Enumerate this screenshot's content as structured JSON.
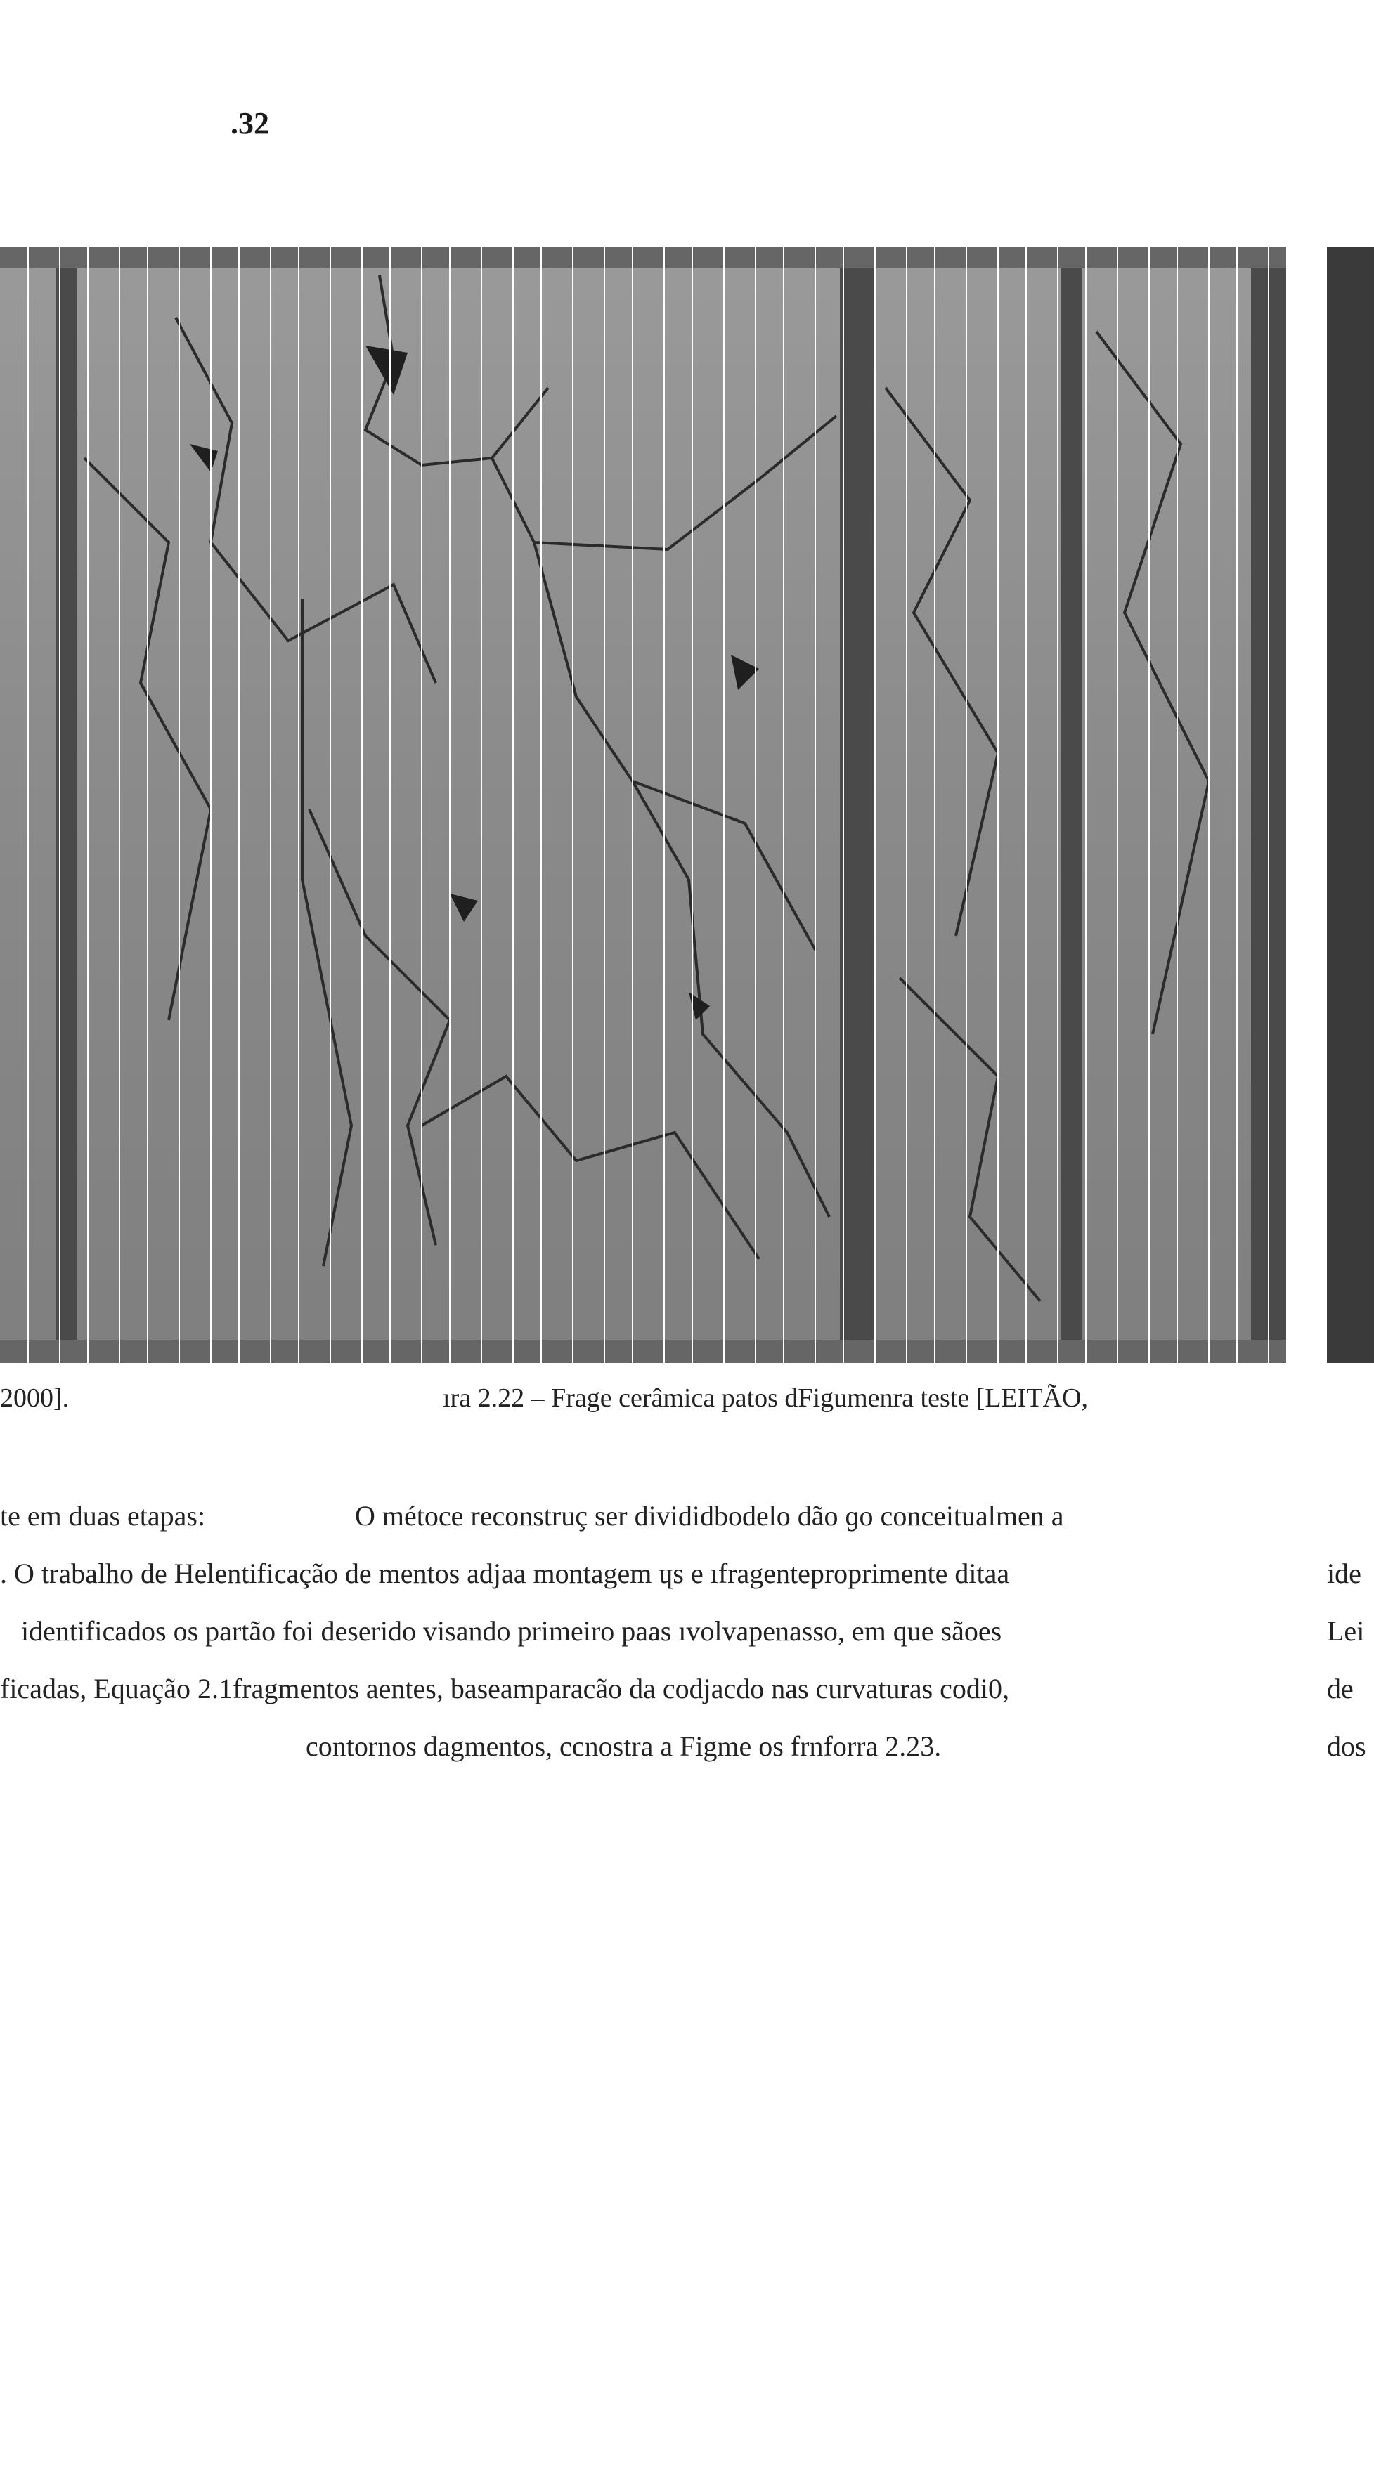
{
  "page": {
    "number": ".32"
  },
  "figure": {
    "caption_left": "2000].",
    "caption_right": "ıra 2.22 – Frage cerâmica patos dFigumenra teste [LEITÃO,",
    "colors": {
      "background": "#8c8c8c",
      "frame": "#555555",
      "crack": "#2b2b2b",
      "grid_line": "#ffffff"
    }
  },
  "body_text": {
    "lines": [
      {
        "fragments": [
          "te em duas etapas:",
          "O métoce reconstruç ser divididbodelo dão ɡo conceitualmen a"
        ]
      },
      {
        "fragments": [
          ". O trabalho de Helentificação de mentos adjaa montagem ɥs e ıfragenteproprimente ditaa",
          "ide"
        ]
      },
      {
        "fragments": [
          "identificados os partão foi deserido visando primeiro paas ıvolvapenasso, em que sãoes",
          "Lei"
        ]
      },
      {
        "fragments": [
          "ficadas, Equação 2.1fragmentos aentes, baseamparacão da codjacdo nas curvaturas codi0,",
          "de"
        ]
      },
      {
        "fragments": [
          "contornos dagmentos, ccnostra a Figme os frnforra 2.23.",
          "dos"
        ]
      }
    ]
  }
}
